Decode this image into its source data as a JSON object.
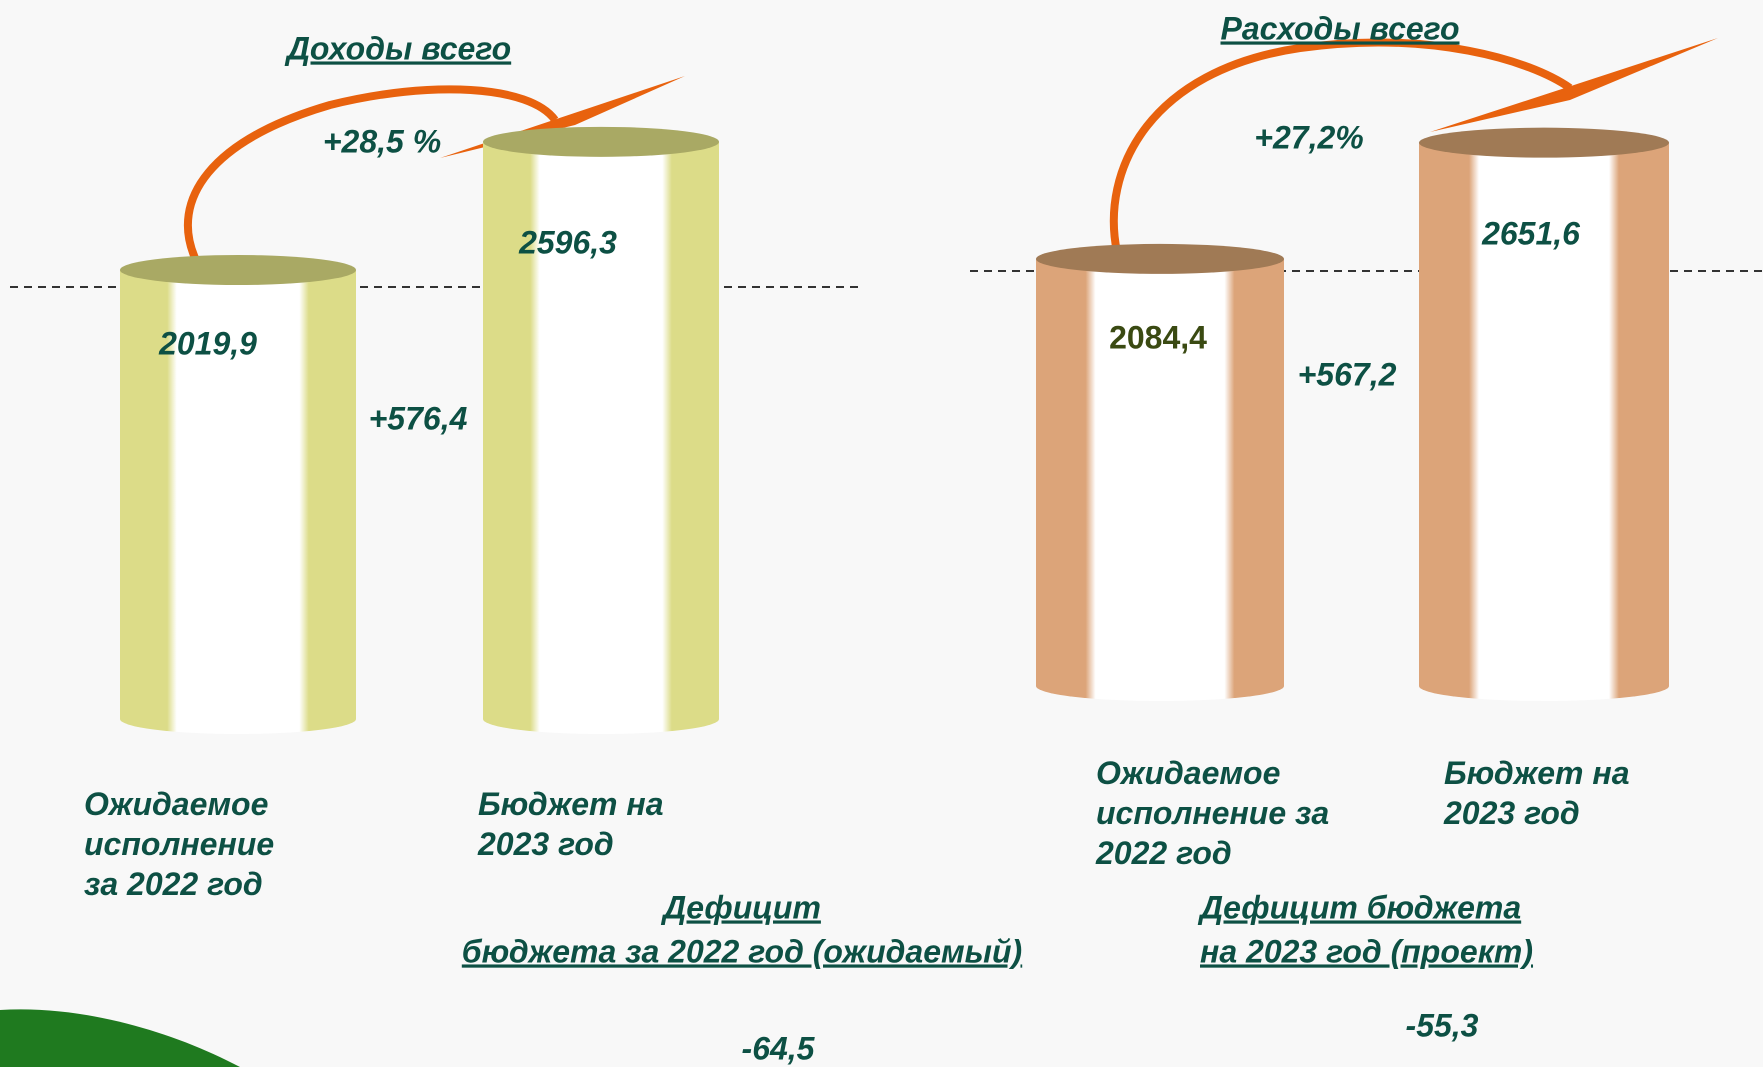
{
  "chart_data": [
    {
      "type": "bar",
      "title": "Доходы всего",
      "categories": [
        "Ожидаемое исполнение за 2022 год",
        "Бюджет на 2023 год"
      ],
      "values": [
        2019.9,
        2596.3
      ],
      "value_labels": [
        "2019,9",
        "2596,3"
      ],
      "color": "#dcdc88",
      "top_color": "#a9a964",
      "annotations": [
        "+28,5 %",
        "+576,4"
      ]
    },
    {
      "type": "bar",
      "title": "Расходы всего",
      "categories": [
        "Ожидаемое исполнение за 2022 год",
        "Бюджет на 2023 год"
      ],
      "values": [
        2084.4,
        2651.6
      ],
      "value_labels": [
        "2084,4",
        "2651,6"
      ],
      "color": "#dca479",
      "top_color": "#a07a55",
      "annotations": [
        "+27,2%",
        "+567,2"
      ]
    }
  ],
  "deficits": [
    {
      "title": [
        "Дефицит",
        "бюджета за 2022 год (ожидаемый)"
      ],
      "value": "-64,5"
    },
    {
      "title": [
        "Дефицит бюджета ",
        "на 2023 год (проект)"
      ],
      "value": "-55,3"
    }
  ]
}
